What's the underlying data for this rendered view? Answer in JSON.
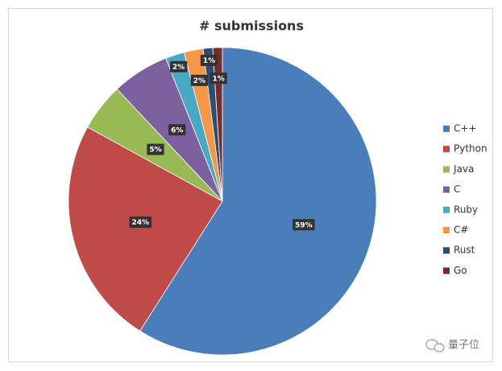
{
  "chart_data": {
    "type": "pie",
    "title": "# submissions",
    "categories": [
      "C++",
      "Python",
      "Java",
      "C",
      "Ruby",
      "C#",
      "Rust",
      "Go"
    ],
    "values": [
      59,
      24,
      5,
      6,
      2,
      2,
      1,
      1
    ],
    "value_labels": [
      "59%",
      "24%",
      "5%",
      "6%",
      "2%",
      "2%",
      "1%",
      "1%"
    ],
    "colors": [
      "#4a7ebb",
      "#be4b48",
      "#98b954",
      "#7d60a0",
      "#46aac5",
      "#f79646",
      "#2c4d75",
      "#772c2a"
    ],
    "legend": "right",
    "watermark": "量子位"
  }
}
